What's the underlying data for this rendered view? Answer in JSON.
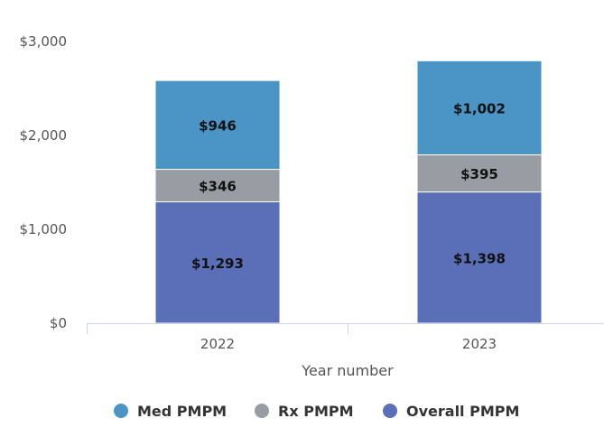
{
  "chart_data": {
    "type": "bar",
    "stacked": true,
    "categories": [
      "2022",
      "2023"
    ],
    "xlabel": "Year number",
    "ylabel": "",
    "ylim": [
      0,
      3000
    ],
    "yticks": [
      0,
      1000,
      2000,
      3000
    ],
    "ytick_labels": [
      "$0",
      "$1,000",
      "$2,000",
      "$3,000"
    ],
    "grid": false,
    "legend_position": "bottom",
    "series": [
      {
        "name": "Overall PMPM",
        "values": [
          1293,
          1398
        ],
        "labels": [
          "$1,293",
          "$1,398"
        ],
        "color": "#5b6fb8"
      },
      {
        "name": "Rx PMPM",
        "values": [
          346,
          395
        ],
        "labels": [
          "$346",
          "$395"
        ],
        "color": "#999ca3"
      },
      {
        "name": "Med PMPM",
        "values": [
          946,
          1002
        ],
        "labels": [
          "$946",
          "$1,002"
        ],
        "color": "#4a95c6"
      }
    ],
    "legend": [
      {
        "name": "Med PMPM",
        "color": "#4a95c6"
      },
      {
        "name": "Rx PMPM",
        "color": "#999ca3"
      },
      {
        "name": "Overall PMPM",
        "color": "#5b6fb8"
      }
    ]
  }
}
